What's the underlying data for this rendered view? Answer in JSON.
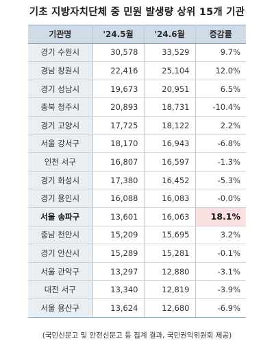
{
  "title": "기초 지방자치단체 중 민원 발생량 상위 15개 기관",
  "headers": [
    "기관명",
    "'24.5월",
    "'24.6월",
    "증감률"
  ],
  "rows": [
    {
      "name": "경기 수원시",
      "may": "30,578",
      "jun": "33,529",
      "rate": "9.7%"
    },
    {
      "name": "경남 창원시",
      "may": "22,416",
      "jun": "25,104",
      "rate": "12.0%"
    },
    {
      "name": "경기 성남시",
      "may": "19,673",
      "jun": "20,951",
      "rate": "6.5%"
    },
    {
      "name": "충북 청주시",
      "may": "20,893",
      "jun": "18,731",
      "rate": "-10.4%"
    },
    {
      "name": "경기 고양시",
      "may": "17,725",
      "jun": "18,122",
      "rate": "2.2%"
    },
    {
      "name": "서울 강서구",
      "may": "18,170",
      "jun": "16,943",
      "rate": "-6.8%"
    },
    {
      "name": "인천 서구",
      "may": "16,807",
      "jun": "16,597",
      "rate": "-1.3%"
    },
    {
      "name": "경기 화성시",
      "may": "17,380",
      "jun": "16,452",
      "rate": "-5.3%"
    },
    {
      "name": "경기 용인시",
      "may": "16,088",
      "jun": "16,083",
      "rate": "-0.0%"
    },
    {
      "name": "서울 송파구",
      "may": "13,601",
      "jun": "16,063",
      "rate": "18.1%"
    },
    {
      "name": "충남 천안시",
      "may": "15,209",
      "jun": "15,695",
      "rate": "3.2%"
    },
    {
      "name": "경기 안산시",
      "may": "15,289",
      "jun": "15,281",
      "rate": "-0.1%"
    },
    {
      "name": "서울 관악구",
      "may": "13,297",
      "jun": "12,880",
      "rate": "-3.1%"
    },
    {
      "name": "대전 서구",
      "may": "13,340",
      "jun": "12,819",
      "rate": "-3.9%"
    },
    {
      "name": "서울 용산구",
      "may": "13,624",
      "jun": "12,680",
      "rate": "-6.9%"
    }
  ],
  "highlight_color": "#fbe0e2",
  "header_color": "#cfdce8",
  "source": "(국민신문고 및 안전신문고 등 집계 결과, 국민권익위원회 제공)"
}
